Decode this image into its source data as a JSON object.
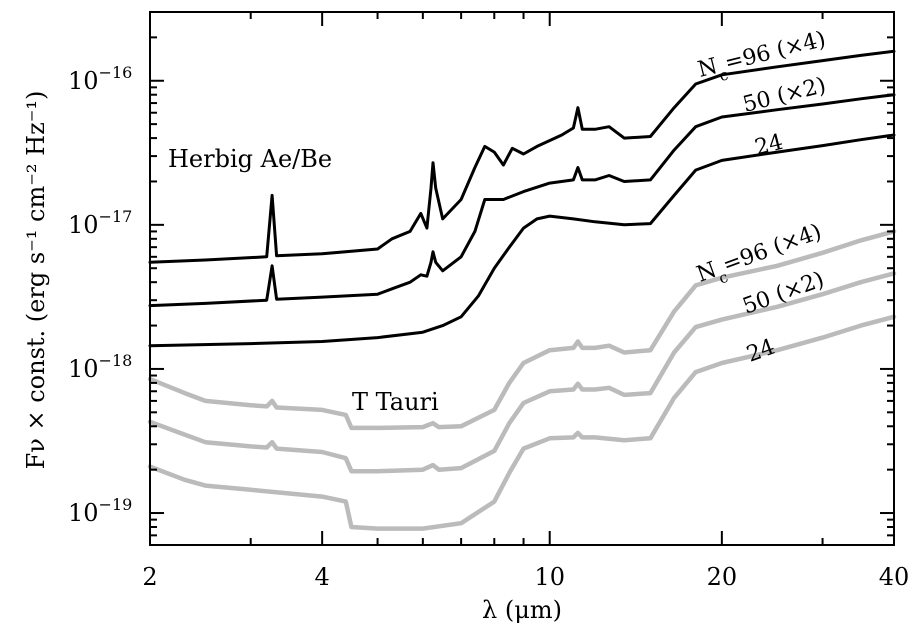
{
  "chart_data": {
    "type": "line",
    "xlabel": "λ (μm)",
    "ylabel": "Fν × const. (erg s⁻¹ cm⁻² Hz⁻¹)",
    "x_scale": "log",
    "y_scale": "log",
    "xlim": [
      2,
      40
    ],
    "ylim": [
      6e-20,
      3e-16
    ],
    "x_ticks": [
      {
        "value": 2,
        "label": "2"
      },
      {
        "value": 4,
        "label": "4"
      },
      {
        "value": 10,
        "label": "10"
      },
      {
        "value": 20,
        "label": "20"
      },
      {
        "value": 40,
        "label": "40"
      }
    ],
    "y_ticks": [
      {
        "value": 1e-19,
        "base": "10",
        "exp": "−19"
      },
      {
        "value": 1e-18,
        "base": "10",
        "exp": "−18"
      },
      {
        "value": 1e-17,
        "base": "10",
        "exp": "−17"
      },
      {
        "value": 1e-16,
        "base": "10",
        "exp": "−16"
      }
    ],
    "groups": [
      {
        "label": "Herbig Ae/Be",
        "color": "#000000"
      },
      {
        "label": "T Tauri",
        "color": "#bbbbbb"
      }
    ],
    "annotations": {
      "herbig": [
        {
          "main": "N",
          "sub": "c",
          "rest": "=96 (×4)"
        },
        {
          "main": "50 (×2)",
          "sub": "",
          "rest": ""
        },
        {
          "main": "24",
          "sub": "",
          "rest": ""
        }
      ],
      "ttauri": [
        {
          "main": "N",
          "sub": "c",
          "rest": "=96 (×4)"
        },
        {
          "main": "50 (×2)",
          "sub": "",
          "rest": ""
        },
        {
          "main": "24",
          "sub": "",
          "rest": ""
        }
      ]
    },
    "series": [
      {
        "group": "Herbig Ae/Be",
        "color": "#000000",
        "points": [
          [
            2,
            5.5e-18
          ],
          [
            2.5,
            5.7e-18
          ],
          [
            3.2,
            6e-18
          ],
          [
            3.27,
            1.6e-17
          ],
          [
            3.33,
            6.1e-18
          ],
          [
            4.0,
            6.3e-18
          ],
          [
            5.0,
            6.8e-18
          ],
          [
            5.3,
            8e-18
          ],
          [
            5.7,
            9e-18
          ],
          [
            5.95,
            1.2e-17
          ],
          [
            6.1,
            9.5e-18
          ],
          [
            6.2,
            1.8e-17
          ],
          [
            6.25,
            2.7e-17
          ],
          [
            6.32,
            1.8e-17
          ],
          [
            6.5,
            1.1e-17
          ],
          [
            7.0,
            1.5e-17
          ],
          [
            7.4,
            2.5e-17
          ],
          [
            7.7,
            3.5e-17
          ],
          [
            8.0,
            3.2e-17
          ],
          [
            8.3,
            2.6e-17
          ],
          [
            8.6,
            3.4e-17
          ],
          [
            9.0,
            3.1e-17
          ],
          [
            9.5,
            3.5e-17
          ],
          [
            10.5,
            4.2e-17
          ],
          [
            11.0,
            4.7e-17
          ],
          [
            11.2,
            6.5e-17
          ],
          [
            11.4,
            4.6e-17
          ],
          [
            12.0,
            4.6e-17
          ],
          [
            12.7,
            4.8e-17
          ],
          [
            13.5,
            4e-17
          ],
          [
            15.0,
            4.1e-17
          ],
          [
            16.5,
            6.5e-17
          ],
          [
            18.0,
            9.5e-17
          ],
          [
            20.0,
            1.1e-16
          ],
          [
            25.0,
            1.25e-16
          ],
          [
            30.0,
            1.38e-16
          ],
          [
            35.0,
            1.5e-16
          ],
          [
            40.0,
            1.6e-16
          ]
        ]
      },
      {
        "group": "Herbig Ae/Be",
        "color": "#000000",
        "points": [
          [
            2,
            2.75e-18
          ],
          [
            2.5,
            2.85e-18
          ],
          [
            3.2,
            3e-18
          ],
          [
            3.27,
            5.2e-18
          ],
          [
            3.33,
            3.05e-18
          ],
          [
            4.0,
            3.15e-18
          ],
          [
            5.0,
            3.3e-18
          ],
          [
            5.3,
            3.6e-18
          ],
          [
            5.7,
            4e-18
          ],
          [
            5.95,
            4.5e-18
          ],
          [
            6.1,
            4.4e-18
          ],
          [
            6.2,
            5.5e-18
          ],
          [
            6.25,
            6.5e-18
          ],
          [
            6.32,
            5.5e-18
          ],
          [
            6.5,
            4.8e-18
          ],
          [
            7.0,
            6e-18
          ],
          [
            7.4,
            9e-18
          ],
          [
            7.7,
            1.5e-17
          ],
          [
            8.3,
            1.5e-17
          ],
          [
            9.0,
            1.7e-17
          ],
          [
            10.0,
            1.95e-17
          ],
          [
            11.0,
            2.05e-17
          ],
          [
            11.2,
            2.5e-17
          ],
          [
            11.4,
            2.05e-17
          ],
          [
            12.0,
            2.05e-17
          ],
          [
            12.7,
            2.2e-17
          ],
          [
            13.5,
            2e-17
          ],
          [
            15.0,
            2.05e-17
          ],
          [
            16.5,
            3.3e-17
          ],
          [
            18.0,
            4.8e-17
          ],
          [
            20.0,
            5.6e-17
          ],
          [
            25.0,
            6.3e-17
          ],
          [
            30.0,
            6.9e-17
          ],
          [
            35.0,
            7.5e-17
          ],
          [
            40.0,
            8e-17
          ]
        ]
      },
      {
        "group": "Herbig Ae/Be",
        "color": "#000000",
        "points": [
          [
            2,
            1.45e-18
          ],
          [
            3.0,
            1.5e-18
          ],
          [
            4.0,
            1.55e-18
          ],
          [
            5.0,
            1.65e-18
          ],
          [
            6.0,
            1.8e-18
          ],
          [
            6.5,
            2e-18
          ],
          [
            7.0,
            2.3e-18
          ],
          [
            7.5,
            3.2e-18
          ],
          [
            8.0,
            5e-18
          ],
          [
            8.5,
            7e-18
          ],
          [
            9.0,
            9.5e-18
          ],
          [
            9.5,
            1.1e-17
          ],
          [
            10.0,
            1.15e-17
          ],
          [
            11.0,
            1.1e-17
          ],
          [
            12.0,
            1.05e-17
          ],
          [
            13.5,
            1e-17
          ],
          [
            15.0,
            1.02e-17
          ],
          [
            16.5,
            1.6e-17
          ],
          [
            18.0,
            2.4e-17
          ],
          [
            20.0,
            2.8e-17
          ],
          [
            25.0,
            3.2e-17
          ],
          [
            30.0,
            3.55e-17
          ],
          [
            35.0,
            3.9e-17
          ],
          [
            40.0,
            4.2e-17
          ]
        ]
      },
      {
        "group": "T Tauri",
        "color": "#bbbbbb",
        "points": [
          [
            2,
            8.5e-19
          ],
          [
            2.3,
            6.8e-19
          ],
          [
            2.5,
            6e-19
          ],
          [
            3.0,
            5.6e-19
          ],
          [
            3.2,
            5.5e-19
          ],
          [
            3.27,
            6e-19
          ],
          [
            3.33,
            5.4e-19
          ],
          [
            4.0,
            5.2e-19
          ],
          [
            4.4,
            4.8e-19
          ],
          [
            4.5,
            3.9e-19
          ],
          [
            5.0,
            3.9e-19
          ],
          [
            6.0,
            3.95e-19
          ],
          [
            6.25,
            4.2e-19
          ],
          [
            6.4,
            3.95e-19
          ],
          [
            7.0,
            4e-19
          ],
          [
            8.0,
            5.2e-19
          ],
          [
            8.5,
            8e-19
          ],
          [
            9.0,
            1.1e-18
          ],
          [
            10.0,
            1.35e-18
          ],
          [
            11.0,
            1.4e-18
          ],
          [
            11.2,
            1.55e-18
          ],
          [
            11.4,
            1.4e-18
          ],
          [
            12.0,
            1.4e-18
          ],
          [
            12.7,
            1.45e-18
          ],
          [
            13.5,
            1.3e-18
          ],
          [
            15.0,
            1.35e-18
          ],
          [
            16.5,
            2.5e-18
          ],
          [
            18.0,
            3.8e-18
          ],
          [
            20.0,
            4.3e-18
          ],
          [
            25.0,
            5.2e-18
          ],
          [
            30.0,
            6.4e-18
          ],
          [
            35.0,
            7.8e-18
          ],
          [
            40.0,
            9e-18
          ]
        ]
      },
      {
        "group": "T Tauri",
        "color": "#bbbbbb",
        "points": [
          [
            2,
            4.3e-19
          ],
          [
            2.3,
            3.5e-19
          ],
          [
            2.5,
            3.1e-19
          ],
          [
            3.0,
            2.9e-19
          ],
          [
            3.2,
            2.85e-19
          ],
          [
            3.27,
            3.1e-19
          ],
          [
            3.33,
            2.8e-19
          ],
          [
            4.0,
            2.65e-19
          ],
          [
            4.4,
            2.4e-19
          ],
          [
            4.5,
            1.95e-19
          ],
          [
            5.0,
            1.95e-19
          ],
          [
            6.0,
            2e-19
          ],
          [
            6.25,
            2.15e-19
          ],
          [
            6.4,
            2e-19
          ],
          [
            7.0,
            2.05e-19
          ],
          [
            8.0,
            2.7e-19
          ],
          [
            8.5,
            4.2e-19
          ],
          [
            9.0,
            5.8e-19
          ],
          [
            10.0,
            7e-19
          ],
          [
            11.0,
            7.2e-19
          ],
          [
            11.2,
            7.9e-19
          ],
          [
            11.4,
            7.2e-19
          ],
          [
            12.0,
            7.2e-19
          ],
          [
            12.7,
            7.4e-19
          ],
          [
            13.5,
            6.6e-19
          ],
          [
            15.0,
            6.8e-19
          ],
          [
            16.5,
            1.3e-18
          ],
          [
            18.0,
            1.95e-18
          ],
          [
            20.0,
            2.2e-18
          ],
          [
            25.0,
            2.7e-18
          ],
          [
            30.0,
            3.3e-18
          ],
          [
            35.0,
            4e-18
          ],
          [
            40.0,
            4.6e-18
          ]
        ]
      },
      {
        "group": "T Tauri",
        "color": "#bbbbbb",
        "points": [
          [
            2,
            2.1e-19
          ],
          [
            2.3,
            1.7e-19
          ],
          [
            2.5,
            1.55e-19
          ],
          [
            3.0,
            1.45e-19
          ],
          [
            4.0,
            1.3e-19
          ],
          [
            4.4,
            1.2e-19
          ],
          [
            4.5,
            8e-20
          ],
          [
            5.0,
            7.8e-20
          ],
          [
            6.0,
            7.8e-20
          ],
          [
            7.0,
            8.5e-20
          ],
          [
            8.0,
            1.2e-19
          ],
          [
            8.5,
            1.9e-19
          ],
          [
            9.0,
            2.8e-19
          ],
          [
            10.0,
            3.3e-19
          ],
          [
            11.0,
            3.35e-19
          ],
          [
            11.2,
            3.6e-19
          ],
          [
            11.4,
            3.35e-19
          ],
          [
            12.0,
            3.35e-19
          ],
          [
            13.5,
            3.2e-19
          ],
          [
            15.0,
            3.3e-19
          ],
          [
            16.5,
            6.3e-19
          ],
          [
            18.0,
            9.5e-19
          ],
          [
            20.0,
            1.1e-18
          ],
          [
            25.0,
            1.35e-18
          ],
          [
            30.0,
            1.65e-18
          ],
          [
            35.0,
            2e-18
          ],
          [
            40.0,
            2.3e-18
          ]
        ]
      }
    ]
  }
}
